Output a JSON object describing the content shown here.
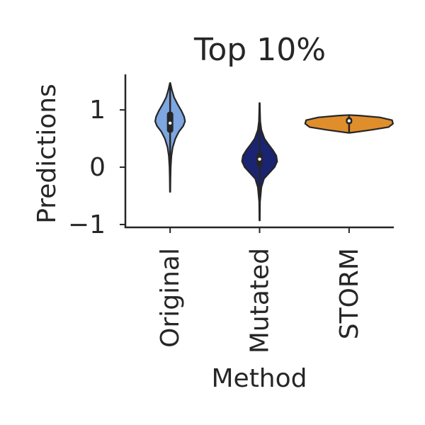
{
  "chart_data": {
    "type": "violin",
    "title": "Top 10%",
    "xlabel": "Method",
    "ylabel": "Predictions",
    "categories": [
      "Original",
      "Mutated",
      "STORM"
    ],
    "yticks": [
      {
        "value": 1,
        "label": "1"
      },
      {
        "value": 0,
        "label": "0"
      },
      {
        "value": -1,
        "label": "−1"
      }
    ],
    "ylim": [
      -1.05,
      1.62
    ],
    "grid": false,
    "colors": [
      "#7ea6e0",
      "#1a2470",
      "#e08e2c"
    ],
    "violins": [
      {
        "name": "Original",
        "min": -0.43,
        "q1": 0.6,
        "median": 0.77,
        "q3": 0.97,
        "max": 1.47,
        "density": [
          [
            -0.43,
            0.004
          ],
          [
            -0.2,
            0.008
          ],
          [
            0.0,
            0.014
          ],
          [
            0.2,
            0.03
          ],
          [
            0.35,
            0.06
          ],
          [
            0.5,
            0.12
          ],
          [
            0.62,
            0.2
          ],
          [
            0.72,
            0.3
          ],
          [
            0.8,
            0.34
          ],
          [
            0.88,
            0.32
          ],
          [
            0.98,
            0.26
          ],
          [
            1.1,
            0.17
          ],
          [
            1.22,
            0.09
          ],
          [
            1.35,
            0.04
          ],
          [
            1.47,
            0.004
          ]
        ]
      },
      {
        "name": "Mutated",
        "min": -0.93,
        "q1": 0.01,
        "median": 0.14,
        "q3": 0.25,
        "max": 1.12,
        "density": [
          [
            -0.93,
            0.004
          ],
          [
            -0.6,
            0.01
          ],
          [
            -0.35,
            0.04
          ],
          [
            -0.2,
            0.1
          ],
          [
            -0.1,
            0.22
          ],
          [
            0.0,
            0.34
          ],
          [
            0.1,
            0.4
          ],
          [
            0.2,
            0.38
          ],
          [
            0.3,
            0.3
          ],
          [
            0.4,
            0.2
          ],
          [
            0.5,
            0.11
          ],
          [
            0.65,
            0.04
          ],
          [
            0.8,
            0.015
          ],
          [
            1.0,
            0.008
          ],
          [
            1.12,
            0.004
          ]
        ]
      },
      {
        "name": "STORM",
        "min": 0.6,
        "q1": 0.75,
        "median": 0.81,
        "q3": 0.87,
        "max": 0.91,
        "density": [
          [
            0.6,
            0.02
          ],
          [
            0.65,
            0.5
          ],
          [
            0.7,
            0.9
          ],
          [
            0.76,
            1.0
          ],
          [
            0.82,
            0.98
          ],
          [
            0.87,
            0.7
          ],
          [
            0.9,
            0.25
          ],
          [
            0.91,
            0.02
          ]
        ]
      }
    ]
  }
}
